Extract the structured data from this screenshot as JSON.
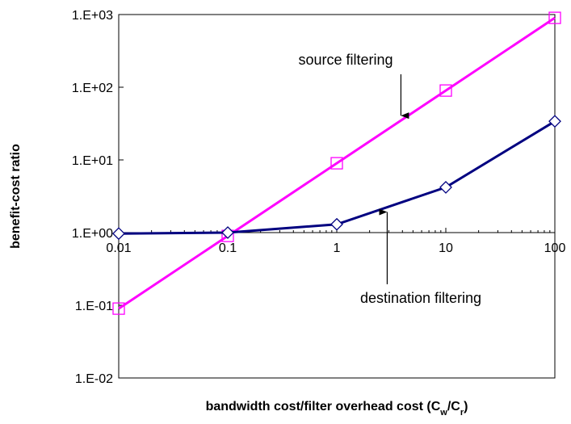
{
  "chart_data": {
    "type": "line",
    "title": "",
    "xlabel": "bandwidth cost/filter overhead cost (C",
    "xlabel_sub1": "w",
    "xlabel_mid": "/C",
    "xlabel_sub2": "r",
    "xlabel_end": ")",
    "ylabel": "benefit-cost ratio",
    "xscale": "log",
    "yscale": "log",
    "xlim": [
      0.01,
      100
    ],
    "ylim": [
      0.01,
      1000
    ],
    "x_tick_labels": [
      "0.01",
      "0.1",
      "1",
      "10",
      "100"
    ],
    "y_tick_labels": [
      "1.E-02",
      "1.E-01",
      "1.E+00",
      "1.E+01",
      "1.E+02",
      "1.E+03"
    ],
    "grid": false,
    "series": [
      {
        "name": "source filtering",
        "color": "#ff00ff",
        "marker": "square",
        "x": [
          0.01,
          0.1,
          1,
          10,
          100
        ],
        "y": [
          0.09,
          0.9,
          9,
          90,
          900
        ]
      },
      {
        "name": "destination filtering",
        "color": "#000080",
        "marker": "diamond",
        "x": [
          0.01,
          0.1,
          1,
          10,
          100
        ],
        "y": [
          0.97,
          1.0,
          1.3,
          4.2,
          34
        ]
      }
    ],
    "annotations": [
      {
        "text": "source filtering",
        "series": "source filtering",
        "arrow_to_x": 3.0
      },
      {
        "text": "destination filtering",
        "series": "destination filtering",
        "arrow_to_x": 3.0
      }
    ]
  }
}
